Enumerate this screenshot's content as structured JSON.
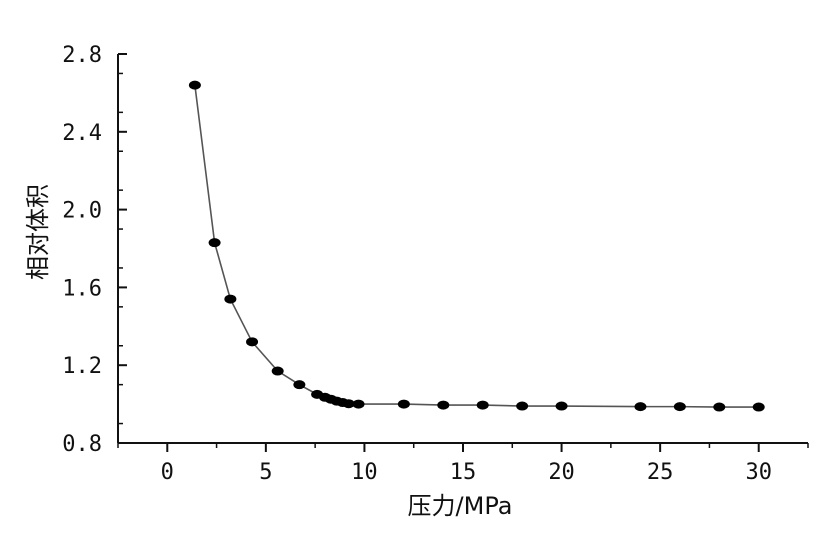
{
  "chart_data": {
    "type": "line",
    "title": "",
    "xlabel": "压力/MPa",
    "ylabel": "相对体积",
    "xlim": [
      -2.5,
      32.5
    ],
    "ylim": [
      0.8,
      2.8
    ],
    "x_ticks": [
      "0",
      "5",
      "10",
      "15",
      "20",
      "25",
      "30"
    ],
    "y_ticks": [
      "0.8",
      "1.2",
      "1.6",
      "2.0",
      "2.4",
      "2.8"
    ],
    "grid": false,
    "legend": "none",
    "line_color": "#555555",
    "marker_color": "#000000",
    "series": [
      {
        "x": [
          1.4,
          2.4,
          3.2,
          4.3,
          5.6,
          6.7,
          7.6,
          8.0,
          8.3,
          8.6,
          8.9,
          9.2,
          9.7,
          12.0,
          14.0,
          16.0,
          18.0,
          20.0,
          24.0,
          26.0,
          28.0,
          30.0
        ],
        "y": [
          2.64,
          1.83,
          1.54,
          1.32,
          1.17,
          1.1,
          1.05,
          1.035,
          1.025,
          1.015,
          1.008,
          1.002,
          1.0,
          1.0,
          0.995,
          0.995,
          0.99,
          0.99,
          0.987,
          0.987,
          0.985,
          0.985
        ]
      }
    ]
  }
}
